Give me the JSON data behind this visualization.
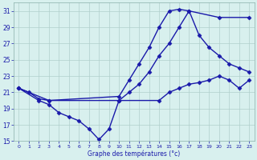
{
  "xlabel": "Graphe des températures (°c)",
  "xlim": [
    -0.5,
    23.5
  ],
  "ylim": [
    15,
    32
  ],
  "yticks": [
    15,
    17,
    19,
    21,
    23,
    25,
    27,
    29,
    31
  ],
  "xticks": [
    0,
    1,
    2,
    3,
    4,
    5,
    6,
    7,
    8,
    9,
    10,
    11,
    12,
    13,
    14,
    15,
    16,
    17,
    18,
    19,
    20,
    21,
    22,
    23
  ],
  "background_color": "#d8f0ee",
  "grid_color": "#b0d0cc",
  "line_color": "#1a1aaa",
  "line_width": 1.0,
  "marker": "D",
  "marker_size": 2.5,
  "series": [
    {
      "x": [
        0,
        1,
        2,
        3,
        10,
        11,
        12,
        13,
        14,
        15,
        16,
        17,
        20,
        23
      ],
      "y": [
        21.5,
        21.0,
        20.2,
        20.0,
        20.5,
        22.5,
        24.5,
        26.5,
        29.0,
        31.0,
        31.2,
        31.0,
        30.2,
        30.2
      ]
    },
    {
      "x": [
        0,
        2,
        3,
        4,
        5,
        6,
        7,
        8,
        9,
        10,
        14,
        15,
        16,
        17,
        18,
        19,
        20,
        21,
        22,
        23
      ],
      "y": [
        21.5,
        20.0,
        19.5,
        18.5,
        18.0,
        17.5,
        16.5,
        15.2,
        16.5,
        20.0,
        20.0,
        21.0,
        21.5,
        22.0,
        22.2,
        22.5,
        23.0,
        22.5,
        21.5,
        22.5
      ]
    },
    {
      "x": [
        0,
        3,
        10,
        11,
        12,
        13,
        14,
        15,
        16,
        17,
        18,
        19,
        20,
        21,
        22,
        23
      ],
      "y": [
        21.5,
        20.0,
        20.0,
        21.0,
        22.0,
        23.5,
        25.5,
        27.0,
        29.0,
        31.0,
        28.0,
        26.5,
        25.5,
        24.5,
        24.0,
        23.5
      ]
    }
  ]
}
